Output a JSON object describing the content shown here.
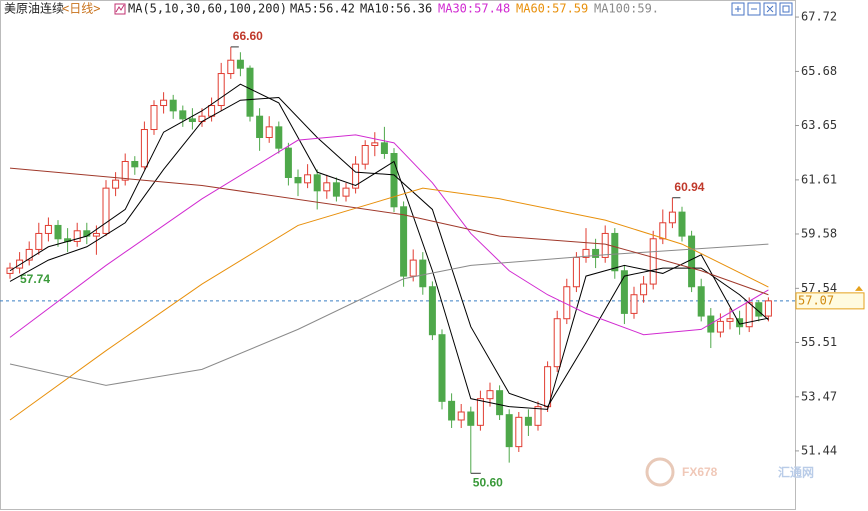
{
  "chart_data": {
    "type": "candlestick",
    "title": "美原油连续",
    "period": "<日线>",
    "ma_label": "MA(5,10,30,60,100,200)",
    "up_color": "#e03c31",
    "down_color": "#4ea84a",
    "ylim": [
      49.41,
      68.36
    ],
    "yticks": [
      67.72,
      65.68,
      63.65,
      61.61,
      59.58,
      57.54,
      55.51,
      53.47,
      51.44
    ],
    "grid": false,
    "ohlc": [
      [
        58.1,
        58.5,
        57.9,
        58.3
      ],
      [
        58.3,
        58.9,
        58.1,
        58.6
      ],
      [
        58.6,
        59.3,
        58.4,
        59.0
      ],
      [
        59.0,
        60.0,
        58.8,
        59.6
      ],
      [
        59.6,
        60.2,
        59.3,
        59.9
      ],
      [
        59.9,
        60.1,
        59.1,
        59.4
      ],
      [
        59.4,
        59.8,
        58.9,
        59.3
      ],
      [
        59.3,
        60.0,
        59.1,
        59.7
      ],
      [
        59.7,
        60.0,
        59.2,
        59.5
      ],
      [
        59.5,
        59.9,
        58.8,
        59.6
      ],
      [
        59.6,
        61.6,
        59.5,
        61.3
      ],
      [
        61.3,
        61.9,
        61.0,
        61.6
      ],
      [
        61.6,
        62.6,
        61.4,
        62.3
      ],
      [
        62.3,
        62.5,
        61.8,
        62.1
      ],
      [
        62.1,
        63.8,
        62.0,
        63.5
      ],
      [
        63.5,
        64.6,
        63.3,
        64.4
      ],
      [
        64.4,
        64.9,
        64.1,
        64.6
      ],
      [
        64.6,
        64.8,
        63.9,
        64.2
      ],
      [
        64.2,
        64.4,
        63.6,
        63.9
      ],
      [
        63.9,
        64.3,
        63.5,
        63.8
      ],
      [
        63.8,
        64.3,
        63.6,
        64.0
      ],
      [
        64.0,
        64.7,
        63.8,
        64.4
      ],
      [
        64.4,
        66.0,
        64.2,
        65.6
      ],
      [
        65.6,
        66.6,
        65.4,
        66.1
      ],
      [
        66.1,
        66.4,
        65.5,
        65.8
      ],
      [
        65.8,
        65.9,
        63.8,
        64.0
      ],
      [
        64.0,
        64.3,
        62.7,
        63.2
      ],
      [
        63.2,
        64.0,
        63.0,
        63.6
      ],
      [
        63.6,
        63.8,
        62.6,
        62.8
      ],
      [
        62.8,
        63.0,
        61.4,
        61.7
      ],
      [
        61.7,
        62.0,
        61.0,
        61.5
      ],
      [
        61.5,
        62.2,
        61.3,
        61.8
      ],
      [
        61.8,
        62.0,
        60.5,
        61.2
      ],
      [
        61.2,
        61.8,
        60.9,
        61.5
      ],
      [
        61.5,
        61.7,
        60.8,
        61.0
      ],
      [
        61.0,
        61.5,
        60.8,
        61.3
      ],
      [
        61.3,
        62.5,
        61.1,
        62.2
      ],
      [
        62.2,
        63.1,
        62.0,
        62.9
      ],
      [
        62.9,
        63.4,
        62.5,
        63.0
      ],
      [
        63.0,
        63.6,
        62.4,
        62.6
      ],
      [
        62.6,
        62.8,
        60.4,
        60.6
      ],
      [
        60.6,
        60.8,
        57.6,
        58.0
      ],
      [
        58.0,
        59.0,
        57.8,
        58.6
      ],
      [
        58.6,
        58.9,
        57.3,
        57.6
      ],
      [
        57.6,
        57.8,
        55.6,
        55.8
      ],
      [
        55.8,
        56.0,
        53.0,
        53.3
      ],
      [
        53.3,
        53.6,
        52.3,
        52.6
      ],
      [
        52.6,
        53.2,
        52.3,
        52.9
      ],
      [
        52.9,
        53.1,
        50.6,
        52.4
      ],
      [
        52.4,
        53.7,
        52.2,
        53.4
      ],
      [
        53.4,
        54.0,
        53.1,
        53.7
      ],
      [
        53.7,
        53.9,
        52.6,
        52.8
      ],
      [
        52.8,
        53.0,
        51.0,
        51.6
      ],
      [
        51.6,
        52.9,
        51.4,
        52.7
      ],
      [
        52.7,
        53.0,
        52.0,
        52.4
      ],
      [
        52.4,
        53.3,
        52.2,
        53.1
      ],
      [
        53.1,
        54.8,
        52.9,
        54.6
      ],
      [
        54.6,
        56.7,
        54.4,
        56.4
      ],
      [
        56.4,
        57.9,
        56.2,
        57.6
      ],
      [
        57.6,
        58.9,
        57.4,
        58.7
      ],
      [
        58.7,
        59.8,
        58.5,
        59.0
      ],
      [
        59.0,
        59.4,
        58.3,
        58.7
      ],
      [
        58.7,
        59.9,
        58.5,
        59.6
      ],
      [
        59.6,
        59.8,
        57.9,
        58.2
      ],
      [
        58.2,
        58.4,
        56.2,
        56.6
      ],
      [
        56.6,
        57.6,
        56.4,
        57.3
      ],
      [
        57.3,
        58.0,
        57.0,
        57.7
      ],
      [
        57.7,
        59.7,
        57.5,
        59.4
      ],
      [
        59.4,
        60.5,
        59.2,
        60.0
      ],
      [
        60.0,
        60.94,
        59.8,
        60.4
      ],
      [
        60.4,
        60.6,
        59.3,
        59.5
      ],
      [
        59.5,
        59.7,
        57.4,
        57.6
      ],
      [
        57.6,
        57.9,
        56.3,
        56.5
      ],
      [
        56.5,
        56.8,
        55.3,
        55.9
      ],
      [
        55.9,
        56.6,
        55.7,
        56.3
      ],
      [
        56.3,
        56.8,
        56.0,
        56.4
      ],
      [
        56.4,
        56.7,
        55.8,
        56.1
      ],
      [
        56.1,
        57.2,
        55.9,
        57.0
      ],
      [
        57.0,
        57.1,
        56.3,
        56.5
      ],
      [
        56.5,
        57.2,
        56.3,
        57.07
      ]
    ],
    "series": [
      {
        "name": "MA5:56.42",
        "color": "#000000",
        "x": [
          0,
          4,
          8,
          12,
          16,
          20,
          24,
          28,
          32,
          36,
          40,
          44,
          48,
          52,
          56,
          60,
          64,
          68,
          72,
          76,
          79
        ],
        "values": [
          58.2,
          59.1,
          59.5,
          60.5,
          63.4,
          64.2,
          65.2,
          64.5,
          61.9,
          61.4,
          62.3,
          58.2,
          53.4,
          53.1,
          53.0,
          58.0,
          58.4,
          58.1,
          58.8,
          56.2,
          56.42
        ]
      },
      {
        "name": "MA10:56.36",
        "color": "#000000",
        "x": [
          0,
          4,
          8,
          12,
          16,
          20,
          24,
          28,
          32,
          36,
          40,
          44,
          48,
          52,
          56,
          60,
          64,
          68,
          72,
          76,
          79
        ],
        "values": [
          57.8,
          58.6,
          59.1,
          60.0,
          62.0,
          63.8,
          64.6,
          64.7,
          63.2,
          61.9,
          61.8,
          60.5,
          56.1,
          53.6,
          53.1,
          55.5,
          58.0,
          58.3,
          58.3,
          57.3,
          56.36
        ]
      },
      {
        "name": "MA30:57.48",
        "color": "#d12ad1",
        "x": [
          0,
          10,
          20,
          30,
          36,
          40,
          44,
          48,
          52,
          56,
          60,
          66,
          72,
          79
        ],
        "values": [
          55.7,
          58.4,
          60.9,
          63.1,
          63.3,
          63.0,
          61.5,
          59.6,
          58.2,
          57.3,
          56.6,
          55.8,
          56.0,
          57.48
        ]
      },
      {
        "name": "MA60:57.59",
        "color": "#e8900c",
        "x": [
          0,
          10,
          20,
          30,
          43,
          51,
          62,
          70,
          79
        ],
        "values": [
          52.6,
          55.2,
          57.7,
          59.9,
          61.3,
          60.9,
          60.1,
          59.2,
          57.59
        ]
      },
      {
        "name": "MA100:59.",
        "color": "#8a8a8a",
        "x": [
          0,
          10,
          20,
          30,
          41,
          48,
          62,
          79
        ],
        "values": [
          54.7,
          53.9,
          54.5,
          56.0,
          57.9,
          58.4,
          58.8,
          59.2
        ]
      },
      {
        "color": "#a0392b",
        "x": [
          0,
          20,
          41,
          51,
          62,
          72,
          79
        ],
        "values": [
          62.05,
          61.4,
          60.3,
          59.5,
          59.2,
          58.2,
          57.3
        ]
      }
    ],
    "annotations": [
      {
        "text": {
          "value": 66.6,
          "label": "66.60"
        },
        "x": 23,
        "color": "#c0392b"
      },
      {
        "text": {
          "value": 50.6,
          "label": "50.60"
        },
        "x": 48,
        "color": "#3a9a3a"
      },
      {
        "text": 60.94,
        "x": 69,
        "color": "#c0392b"
      }
    ],
    "left_label": 57.74,
    "current_price": 57.07,
    "watermark": [
      "FX678",
      "汇通网"
    ]
  }
}
